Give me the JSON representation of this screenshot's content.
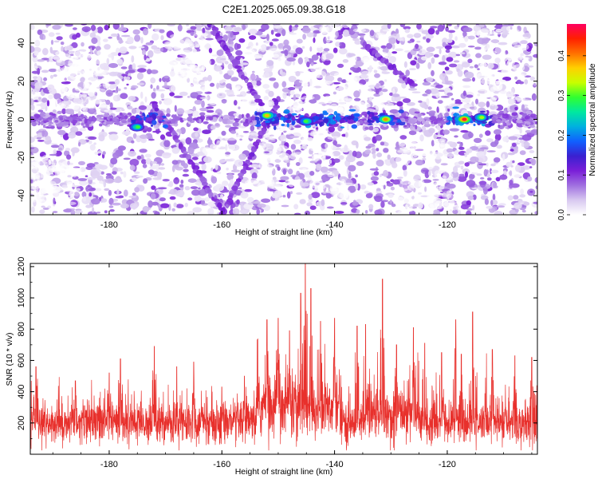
{
  "title": "C2E1.2025.065.09.38.G18",
  "chart_data": [
    {
      "type": "heatmap",
      "xlabel": "Height of straight line (km)",
      "ylabel": "Frequency (Hz)",
      "xlim": [
        -194,
        -104
      ],
      "ylim": [
        -50,
        50
      ],
      "xticks": [
        "-180",
        "-160",
        "-140",
        "-120"
      ],
      "xtick_values": [
        -180,
        -160,
        -140,
        -120
      ],
      "yticks": [
        "40",
        "20",
        "0",
        "-20",
        "-40"
      ],
      "ytick_values": [
        40,
        20,
        0,
        -20,
        -40
      ],
      "colorbar": {
        "label": "Normalized spectral amplitude",
        "range": [
          0.0,
          0.48
        ],
        "ticks": [
          "0.0",
          "0.1",
          "0.2",
          "0.3",
          "0.4"
        ],
        "tick_values": [
          0.0,
          0.1,
          0.2,
          0.3,
          0.4
        ],
        "colormap": [
          "#ffffff",
          "#d8c8f0",
          "#a070e0",
          "#7a1fd8",
          "#3a20d0",
          "#1060ff",
          "#00b0e0",
          "#00e8a0",
          "#30ff30",
          "#c8ff00",
          "#ffd000",
          "#ff7000",
          "#ff2000",
          "#ff0060"
        ]
      },
      "features": [
        {
          "kind": "horizontal_band",
          "y": 0,
          "x": [
            -194,
            -104
          ],
          "note_strength": "strong near -154 to -136, -119 to -113"
        },
        {
          "kind": "diagonal_streak",
          "from": [
            -162,
            50
          ],
          "to": [
            -153,
            8
          ]
        },
        {
          "kind": "diagonal_streak",
          "from": [
            -150,
            10
          ],
          "to": [
            -160,
            -50
          ]
        },
        {
          "kind": "diagonal_streak",
          "from": [
            -172,
            8
          ],
          "to": [
            -160,
            -48
          ]
        },
        {
          "kind": "diagonal_streak",
          "from": [
            -135,
            40
          ],
          "to": [
            -126,
            18
          ]
        }
      ],
      "hotspots": [
        {
          "x": -117,
          "y": 0,
          "value": 0.47
        },
        {
          "x": -131,
          "y": 0,
          "value": 0.4
        },
        {
          "x": -152,
          "y": 2,
          "value": 0.38
        },
        {
          "x": -145,
          "y": -1,
          "value": 0.3
        },
        {
          "x": -175,
          "y": -4,
          "value": 0.3
        },
        {
          "x": -114,
          "y": 1,
          "value": 0.33
        }
      ]
    },
    {
      "type": "line",
      "xlabel": "Height of straight line (km)",
      "ylabel": "SNR (10 * v/v)",
      "xlim": [
        -194,
        -104
      ],
      "ylim": [
        0,
        1220
      ],
      "xticks": [
        "-180",
        "-160",
        "-140",
        "-120"
      ],
      "xtick_values": [
        -180,
        -160,
        -140,
        -120
      ],
      "yticks": [
        "1200",
        "1000",
        "800",
        "600",
        "400",
        "200"
      ],
      "ytick_values": [
        1200,
        1000,
        800,
        600,
        400,
        200
      ],
      "series_color": "#e8302c",
      "baseline_mean": 200,
      "peaks": [
        {
          "x": -193,
          "y": 560
        },
        {
          "x": -186,
          "y": 470
        },
        {
          "x": -180,
          "y": 520
        },
        {
          "x": -178,
          "y": 610
        },
        {
          "x": -172,
          "y": 690
        },
        {
          "x": -168,
          "y": 560
        },
        {
          "x": -165,
          "y": 590
        },
        {
          "x": -160,
          "y": 430
        },
        {
          "x": -156,
          "y": 500
        },
        {
          "x": -152,
          "y": 860
        },
        {
          "x": -150,
          "y": 870
        },
        {
          "x": -148,
          "y": 790
        },
        {
          "x": -146,
          "y": 1030
        },
        {
          "x": -145.2,
          "y": 1220
        },
        {
          "x": -144.2,
          "y": 1060
        },
        {
          "x": -142.5,
          "y": 850
        },
        {
          "x": -140,
          "y": 870
        },
        {
          "x": -136,
          "y": 820
        },
        {
          "x": -134.5,
          "y": 830
        },
        {
          "x": -131.5,
          "y": 1120
        },
        {
          "x": -129,
          "y": 700
        },
        {
          "x": -126,
          "y": 810
        },
        {
          "x": -124,
          "y": 710
        },
        {
          "x": -121,
          "y": 650
        },
        {
          "x": -118.5,
          "y": 860
        },
        {
          "x": -117.5,
          "y": 640
        },
        {
          "x": -115.5,
          "y": 910
        },
        {
          "x": -112,
          "y": 670
        },
        {
          "x": -108,
          "y": 630
        },
        {
          "x": -105,
          "y": 620
        }
      ]
    }
  ]
}
